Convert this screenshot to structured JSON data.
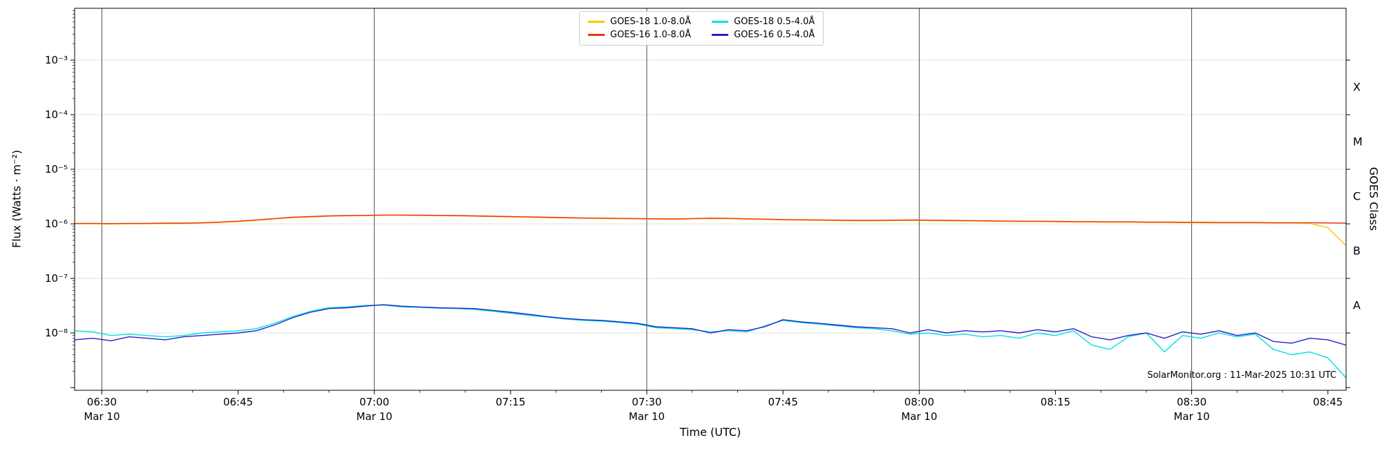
{
  "chart_data": {
    "type": "line",
    "title": "",
    "xlabel": "Time (UTC)",
    "ylabel": "Flux (Watts · m⁻²)",
    "right_ylabel": "GOES Class",
    "annotation": "SolarMonitor.org : 11-Mar-2025 10:31 UTC",
    "x_unit": "minutes after 06:00 UTC on Mar 10",
    "xlim": [
      27,
      167
    ],
    "ylim_log10": [
      -9.05,
      -2.05
    ],
    "grid": {
      "horizontal": "on-faint",
      "vertical": "on-dark-every-30min"
    },
    "legend_position": "top-center",
    "xticks": [
      {
        "m": 30,
        "label": "06:30",
        "date": "Mar 10"
      },
      {
        "m": 45,
        "label": "06:45",
        "date": ""
      },
      {
        "m": 60,
        "label": "07:00",
        "date": "Mar 10"
      },
      {
        "m": 75,
        "label": "07:15",
        "date": ""
      },
      {
        "m": 90,
        "label": "07:30",
        "date": "Mar 10"
      },
      {
        "m": 105,
        "label": "07:45",
        "date": ""
      },
      {
        "m": 120,
        "label": "08:00",
        "date": "Mar 10"
      },
      {
        "m": 135,
        "label": "08:15",
        "date": ""
      },
      {
        "m": 150,
        "label": "08:30",
        "date": "Mar 10"
      },
      {
        "m": 165,
        "label": "08:45",
        "date": ""
      }
    ],
    "minor_xtick_step_min": 5,
    "yticks": [
      {
        "exp": -3,
        "label": "10⁻³"
      },
      {
        "exp": -4,
        "label": "10⁻⁴"
      },
      {
        "exp": -5,
        "label": "10⁻⁵"
      },
      {
        "exp": -6,
        "label": "10⁻⁶"
      },
      {
        "exp": -7,
        "label": "10⁻⁷"
      },
      {
        "exp": -8,
        "label": "10⁻⁸"
      }
    ],
    "goes_classes": [
      {
        "label": "X",
        "exp": -3.5
      },
      {
        "label": "M",
        "exp": -4.5
      },
      {
        "label": "C",
        "exp": -5.5
      },
      {
        "label": "B",
        "exp": -6.5
      },
      {
        "label": "A",
        "exp": -7.5
      }
    ],
    "vertical_gridline_minutes": [
      30,
      60,
      90,
      120,
      150
    ],
    "h_gridline_exps": [
      -8,
      -7,
      -6,
      -5,
      -4,
      -3
    ],
    "x": [
      27,
      29,
      31,
      33,
      35,
      37,
      39,
      41,
      43,
      45,
      47,
      49,
      51,
      53,
      55,
      57,
      59,
      61,
      63,
      65,
      67,
      69,
      71,
      73,
      75,
      77,
      79,
      81,
      83,
      85,
      87,
      89,
      91,
      93,
      95,
      97,
      99,
      101,
      103,
      105,
      107,
      109,
      111,
      113,
      115,
      117,
      119,
      121,
      123,
      125,
      127,
      129,
      131,
      133,
      135,
      137,
      139,
      141,
      143,
      145,
      147,
      149,
      151,
      153,
      155,
      157,
      159,
      161,
      163,
      165,
      167
    ],
    "series": [
      {
        "name": "GOES-18 1.0-8.0Å",
        "color": "#ffc400",
        "scale": 1e-06,
        "values": [
          1.0,
          1.0,
          0.99,
          1.0,
          1.0,
          1.01,
          1.01,
          1.03,
          1.06,
          1.1,
          1.16,
          1.23,
          1.3,
          1.34,
          1.38,
          1.4,
          1.41,
          1.43,
          1.43,
          1.42,
          1.41,
          1.4,
          1.38,
          1.36,
          1.34,
          1.32,
          1.3,
          1.28,
          1.26,
          1.25,
          1.24,
          1.23,
          1.22,
          1.21,
          1.23,
          1.25,
          1.24,
          1.22,
          1.2,
          1.18,
          1.17,
          1.16,
          1.15,
          1.14,
          1.14,
          1.15,
          1.16,
          1.15,
          1.14,
          1.13,
          1.12,
          1.11,
          1.1,
          1.1,
          1.09,
          1.08,
          1.08,
          1.07,
          1.07,
          1.06,
          1.06,
          1.05,
          1.05,
          1.04,
          1.04,
          1.04,
          1.03,
          1.03,
          1.02,
          0.85,
          0.4
        ]
      },
      {
        "name": "GOES-16 1.0-8.0Å",
        "color": "#ee3311",
        "scale": 1e-06,
        "values": [
          1.02,
          1.02,
          1.01,
          1.02,
          1.02,
          1.03,
          1.03,
          1.05,
          1.08,
          1.12,
          1.18,
          1.25,
          1.32,
          1.36,
          1.4,
          1.42,
          1.43,
          1.45,
          1.45,
          1.44,
          1.43,
          1.42,
          1.4,
          1.38,
          1.36,
          1.34,
          1.32,
          1.3,
          1.28,
          1.27,
          1.26,
          1.25,
          1.24,
          1.23,
          1.25,
          1.27,
          1.26,
          1.24,
          1.22,
          1.2,
          1.19,
          1.18,
          1.17,
          1.16,
          1.16,
          1.17,
          1.18,
          1.17,
          1.16,
          1.15,
          1.14,
          1.13,
          1.12,
          1.12,
          1.11,
          1.1,
          1.1,
          1.09,
          1.09,
          1.08,
          1.08,
          1.07,
          1.07,
          1.06,
          1.06,
          1.06,
          1.05,
          1.05,
          1.05,
          1.04,
          1.03
        ]
      },
      {
        "name": "GOES-18 0.5-4.0Å",
        "color": "#00e0e0",
        "scale": 1e-08,
        "values": [
          1.1,
          1.05,
          0.9,
          0.95,
          0.9,
          0.85,
          0.9,
          1.0,
          1.05,
          1.1,
          1.2,
          1.5,
          2.0,
          2.5,
          2.9,
          3.0,
          3.2,
          3.25,
          3.0,
          2.95,
          2.85,
          2.8,
          2.7,
          2.5,
          2.3,
          2.1,
          1.95,
          1.8,
          1.7,
          1.65,
          1.55,
          1.45,
          1.25,
          1.2,
          1.15,
          1.05,
          1.1,
          1.05,
          1.35,
          1.7,
          1.55,
          1.45,
          1.35,
          1.25,
          1.2,
          1.1,
          0.95,
          1.0,
          0.9,
          0.95,
          0.85,
          0.9,
          0.8,
          1.0,
          0.9,
          1.1,
          0.6,
          0.5,
          0.85,
          1.0,
          0.45,
          0.9,
          0.8,
          1.0,
          0.85,
          0.95,
          0.5,
          0.4,
          0.45,
          0.35,
          0.15
        ]
      },
      {
        "name": "GOES-16 0.5-4.0Å",
        "color": "#2222cc",
        "scale": 1e-08,
        "values": [
          0.75,
          0.8,
          0.72,
          0.85,
          0.8,
          0.75,
          0.85,
          0.9,
          0.95,
          1.0,
          1.1,
          1.4,
          1.9,
          2.4,
          2.8,
          2.9,
          3.1,
          3.3,
          3.1,
          3.0,
          2.9,
          2.85,
          2.8,
          2.6,
          2.4,
          2.2,
          2.0,
          1.85,
          1.75,
          1.7,
          1.6,
          1.5,
          1.3,
          1.25,
          1.2,
          1.0,
          1.15,
          1.1,
          1.3,
          1.75,
          1.6,
          1.5,
          1.4,
          1.3,
          1.25,
          1.2,
          1.0,
          1.15,
          1.0,
          1.1,
          1.05,
          1.1,
          1.0,
          1.15,
          1.05,
          1.2,
          0.85,
          0.75,
          0.9,
          1.0,
          0.8,
          1.05,
          0.95,
          1.1,
          0.9,
          1.0,
          0.7,
          0.65,
          0.8,
          0.75,
          0.6
        ]
      }
    ]
  },
  "legend": {
    "entries": [
      {
        "label": "GOES-18 1.0-8.0Å"
      },
      {
        "label": "GOES-16 1.0-8.0Å"
      },
      {
        "label": "GOES-18 0.5-4.0Å"
      },
      {
        "label": "GOES-16 0.5-4.0Å"
      }
    ]
  }
}
